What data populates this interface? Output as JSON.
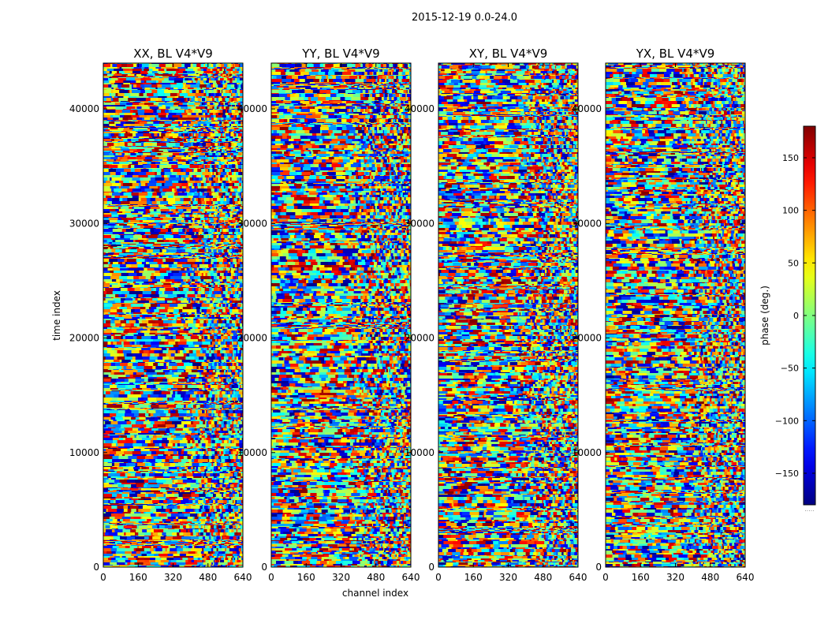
{
  "figure": {
    "suptitle": "2015-12-19 0.0-24.0",
    "xlabel": "channel index",
    "ylabel": "time index"
  },
  "chart_data": {
    "type": "heatmap",
    "x_ticks": [
      0,
      160,
      320,
      480,
      640
    ],
    "y_ticks": [
      0,
      10000,
      20000,
      30000,
      40000
    ],
    "xlim": [
      0,
      640
    ],
    "ylim": [
      0,
      44000
    ],
    "panels": [
      {
        "title": "XX, BL V4*V9",
        "seed": 11
      },
      {
        "title": "YY, BL V4*V9",
        "seed": 23
      },
      {
        "title": "XY, BL V4*V9",
        "seed": 37
      },
      {
        "title": "YX, BL V4*V9",
        "seed": 53
      }
    ],
    "colorbar": {
      "label": "phase (deg.)",
      "ticks": [
        150,
        100,
        50,
        0,
        -50,
        -100,
        -150
      ],
      "tick_labels": [
        "150",
        "100",
        "50",
        "0",
        "−50",
        "−100",
        "−150"
      ],
      "range": [
        -180,
        180
      ],
      "colormap": "jet",
      "footer": "....."
    },
    "colors": {
      "jet": [
        "#00007f",
        "#0000ff",
        "#007fff",
        "#00ffff",
        "#7fff7f",
        "#ffff00",
        "#ff7f00",
        "#ff0000",
        "#7f0000"
      ]
    }
  }
}
